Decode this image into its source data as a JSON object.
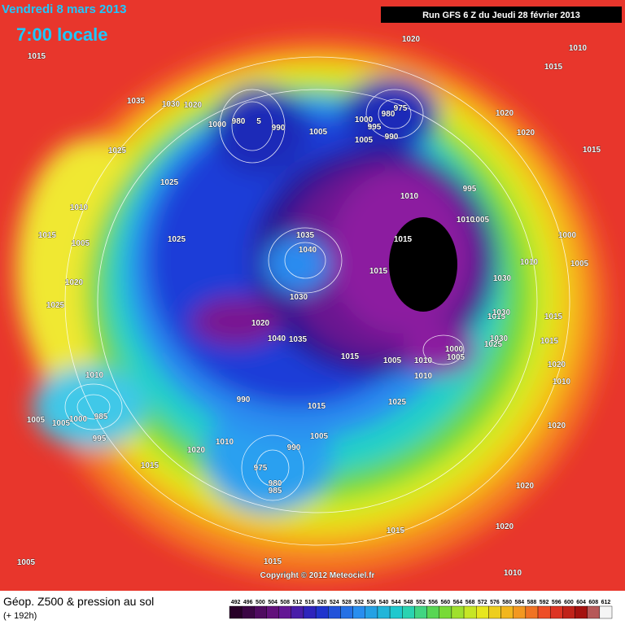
{
  "header": {
    "date": "Vendredi 8 mars 2013",
    "time": "7:00 locale",
    "run": "Run GFS 6 Z du Jeudi 28 février 2013"
  },
  "copyright": "Copyright © 2012 Meteociel.fr",
  "legend": {
    "title": "Géop. Z500 & pression au sol",
    "subtitle": "(+ 192h)",
    "ticks": [
      492,
      496,
      500,
      504,
      508,
      512,
      516,
      520,
      524,
      528,
      532,
      536,
      540,
      544,
      548,
      552,
      556,
      560,
      564,
      568,
      572,
      576,
      580,
      584,
      588,
      592,
      596,
      600,
      604,
      608,
      612
    ]
  },
  "isobar_labels": [
    "1015",
    "1035",
    "1030",
    "1020",
    "1000",
    "980",
    "5",
    "990",
    "1005",
    "1000",
    "975",
    "980",
    "995",
    "1005",
    "990",
    "1020",
    "1015",
    "1010",
    "1020",
    "1020",
    "1015",
    "1025",
    "1025",
    "995",
    "1010",
    "1005",
    "1010",
    "1010",
    "1015",
    "1005",
    "1025",
    "1035",
    "1040",
    "1015",
    "1015",
    "1000",
    "1005",
    "1020",
    "1030",
    "1025",
    "1030",
    "1020",
    "1040",
    "1035",
    "1015",
    "1030",
    "1015",
    "1010",
    "1005",
    "1000",
    "1005",
    "1025",
    "1015",
    "1005",
    "1010",
    "1020",
    "1010",
    "990",
    "985",
    "1005",
    "1000",
    "995",
    "1020",
    "1015",
    "1015",
    "1010",
    "1005",
    "990",
    "975",
    "980",
    "985",
    "1005",
    "1025",
    "1020",
    "1015",
    "1010",
    "1020",
    "1020",
    "1030",
    "1015",
    "1010",
    "1015",
    "1010"
  ]
}
